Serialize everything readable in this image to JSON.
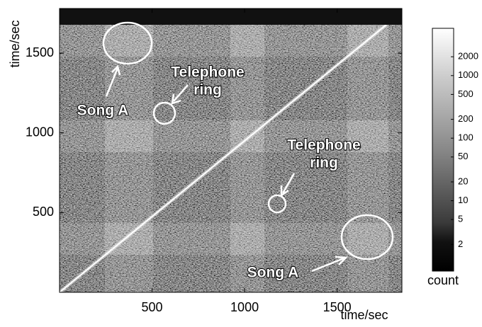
{
  "chart_data": {
    "type": "heatmap",
    "xlabel": "time/sec",
    "ylabel": "time/sec",
    "xlim": [
      0,
      1850
    ],
    "ylim": [
      0,
      1780
    ],
    "xticks": [
      500,
      1000,
      1500
    ],
    "yticks": [
      500,
      1000,
      1500
    ],
    "colorbar": {
      "label": "count",
      "log": true,
      "clim": [
        0.75,
        5700
      ],
      "ticks": [
        2,
        5,
        10,
        20,
        50,
        100,
        200,
        500,
        1000,
        2000
      ]
    },
    "annotations": [
      {
        "lines": [
          "Song A"
        ]
      },
      {
        "lines": [
          "Telephone",
          "ring"
        ]
      },
      {
        "lines": [
          "Telephone",
          "ring"
        ]
      },
      {
        "lines": [
          "Song A"
        ]
      }
    ]
  }
}
